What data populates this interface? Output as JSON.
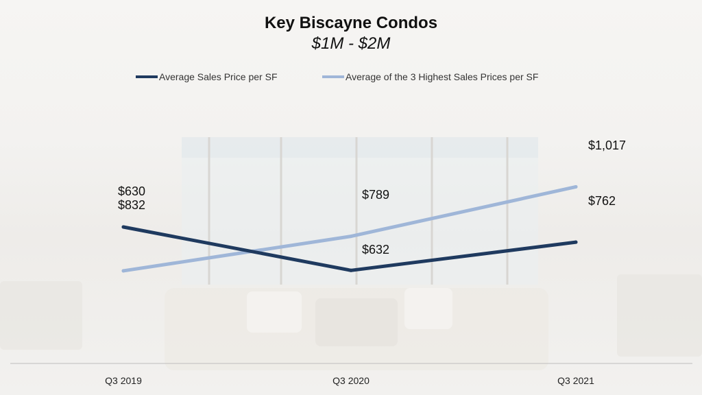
{
  "chart_data": {
    "type": "line",
    "title": "Key Biscayne Condos",
    "subtitle": "$1M - $2M",
    "categories": [
      "Q3 2019",
      "Q3 2020",
      "Q3 2021"
    ],
    "series": [
      {
        "name": "Average Sales Price per SF",
        "values": [
          832,
          632,
          762
        ],
        "labels": [
          "$832",
          "$632",
          "$762"
        ],
        "color": "#1f3a5f"
      },
      {
        "name": "Average of the 3 Highest Sales Prices per SF",
        "values": [
          630,
          789,
          1017
        ],
        "labels": [
          "$630",
          "$789",
          "$1,017"
        ],
        "color": "#9fb6d8"
      }
    ],
    "legend_position": "top",
    "grid": false
  }
}
